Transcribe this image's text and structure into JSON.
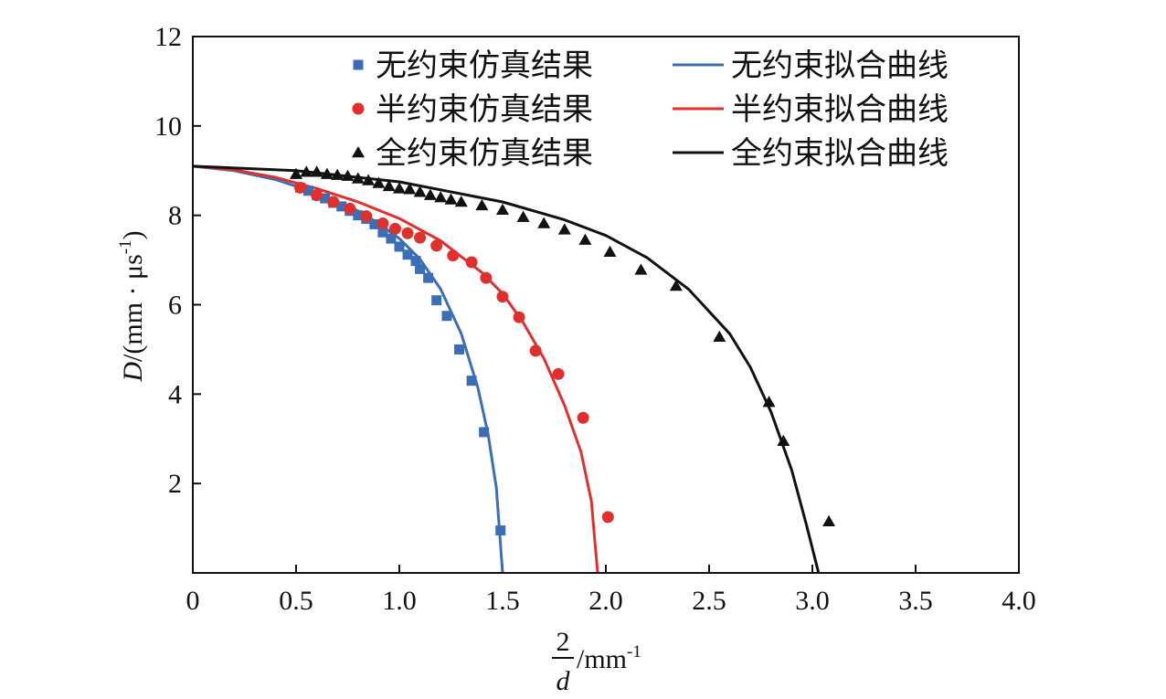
{
  "chart_data": {
    "type": "scatter",
    "xlabel": {
      "numerator": "2",
      "denominator": "d",
      "unit": "/mm",
      "unit_sup": "-1"
    },
    "ylabel": {
      "var": "D",
      "unit": "/(mm · μs",
      "unit_sup": "-1",
      "close": ")"
    },
    "xlim": [
      0,
      4.0
    ],
    "ylim": [
      0,
      12
    ],
    "x_ticks": [
      0,
      0.5,
      1.0,
      1.5,
      2.0,
      2.5,
      3.0,
      3.5,
      4.0
    ],
    "x_tick_labels": [
      "0",
      "0.5",
      "1.0",
      "1.5",
      "2.0",
      "2.5",
      "3.0",
      "3.5",
      "4.0"
    ],
    "y_ticks": [
      2,
      4,
      6,
      8,
      10,
      12
    ],
    "y_tick_labels": [
      "2",
      "4",
      "6",
      "8",
      "10",
      "12"
    ],
    "grid": false,
    "legend_position": "top-right",
    "colors": {
      "blue": "#3a6fb8",
      "red": "#e0302e",
      "black": "#111111"
    },
    "series": [
      {
        "name": "无约束仿真结果",
        "kind": "points",
        "marker": "square",
        "color": "#3a6fb8",
        "points": [
          [
            0.52,
            8.62
          ],
          [
            0.56,
            8.55
          ],
          [
            0.6,
            8.45
          ],
          [
            0.64,
            8.38
          ],
          [
            0.68,
            8.28
          ],
          [
            0.72,
            8.2
          ],
          [
            0.76,
            8.1
          ],
          [
            0.8,
            8.0
          ],
          [
            0.84,
            7.92
          ],
          [
            0.88,
            7.8
          ],
          [
            0.92,
            7.62
          ],
          [
            0.96,
            7.48
          ],
          [
            1.0,
            7.3
          ],
          [
            1.04,
            7.12
          ],
          [
            1.08,
            6.98
          ],
          [
            1.1,
            6.8
          ],
          [
            1.14,
            6.6
          ],
          [
            1.18,
            6.1
          ],
          [
            1.23,
            5.75
          ],
          [
            1.29,
            5.0
          ],
          [
            1.35,
            4.3
          ],
          [
            1.41,
            3.15
          ],
          [
            1.49,
            0.95
          ]
        ]
      },
      {
        "name": "半约束仿真结果",
        "kind": "points",
        "marker": "circle",
        "color": "#e0302e",
        "points": [
          [
            0.52,
            8.62
          ],
          [
            0.6,
            8.45
          ],
          [
            0.68,
            8.3
          ],
          [
            0.76,
            8.15
          ],
          [
            0.84,
            7.98
          ],
          [
            0.92,
            7.82
          ],
          [
            0.98,
            7.7
          ],
          [
            1.04,
            7.6
          ],
          [
            1.1,
            7.5
          ],
          [
            1.18,
            7.32
          ],
          [
            1.26,
            7.1
          ],
          [
            1.35,
            6.95
          ],
          [
            1.42,
            6.6
          ],
          [
            1.5,
            6.18
          ],
          [
            1.58,
            5.72
          ],
          [
            1.66,
            4.97
          ],
          [
            1.77,
            4.45
          ],
          [
            1.89,
            3.47
          ],
          [
            2.01,
            1.25
          ]
        ]
      },
      {
        "name": "全约束仿真结果",
        "kind": "points",
        "marker": "triangle",
        "color": "#111111",
        "points": [
          [
            0.5,
            8.92
          ],
          [
            0.55,
            8.97
          ],
          [
            0.6,
            8.97
          ],
          [
            0.65,
            8.92
          ],
          [
            0.7,
            8.9
          ],
          [
            0.75,
            8.88
          ],
          [
            0.8,
            8.82
          ],
          [
            0.85,
            8.78
          ],
          [
            0.9,
            8.72
          ],
          [
            0.95,
            8.65
          ],
          [
            1.0,
            8.6
          ],
          [
            1.05,
            8.58
          ],
          [
            1.1,
            8.52
          ],
          [
            1.15,
            8.45
          ],
          [
            1.2,
            8.4
          ],
          [
            1.25,
            8.35
          ],
          [
            1.3,
            8.3
          ],
          [
            1.4,
            8.22
          ],
          [
            1.5,
            8.12
          ],
          [
            1.6,
            7.96
          ],
          [
            1.7,
            7.82
          ],
          [
            1.8,
            7.68
          ],
          [
            1.9,
            7.45
          ],
          [
            2.02,
            7.18
          ],
          [
            2.17,
            6.78
          ],
          [
            2.34,
            6.42
          ],
          [
            2.55,
            5.28
          ],
          [
            2.79,
            3.82
          ],
          [
            2.86,
            2.95
          ],
          [
            3.08,
            1.15
          ]
        ]
      },
      {
        "name": "无约束拟合曲线",
        "kind": "line",
        "color": "#3a6fb8",
        "points": [
          [
            0.0,
            9.1
          ],
          [
            0.2,
            9.0
          ],
          [
            0.4,
            8.8
          ],
          [
            0.6,
            8.5
          ],
          [
            0.8,
            8.1
          ],
          [
            0.9,
            7.82
          ],
          [
            1.0,
            7.48
          ],
          [
            1.1,
            7.02
          ],
          [
            1.2,
            6.35
          ],
          [
            1.3,
            5.35
          ],
          [
            1.38,
            4.15
          ],
          [
            1.43,
            3.1
          ],
          [
            1.47,
            1.9
          ],
          [
            1.5,
            0.0
          ]
        ]
      },
      {
        "name": "半约束拟合曲线",
        "kind": "line",
        "color": "#e0302e",
        "points": [
          [
            0.0,
            9.1
          ],
          [
            0.2,
            9.02
          ],
          [
            0.4,
            8.85
          ],
          [
            0.6,
            8.6
          ],
          [
            0.8,
            8.3
          ],
          [
            1.0,
            7.93
          ],
          [
            1.2,
            7.43
          ],
          [
            1.4,
            6.72
          ],
          [
            1.5,
            6.25
          ],
          [
            1.6,
            5.6
          ],
          [
            1.7,
            4.8
          ],
          [
            1.8,
            3.75
          ],
          [
            1.88,
            2.7
          ],
          [
            1.93,
            1.6
          ],
          [
            1.96,
            0.0
          ]
        ]
      },
      {
        "name": "全约束拟合曲线",
        "kind": "line",
        "color": "#111111",
        "points": [
          [
            0.0,
            9.1
          ],
          [
            0.5,
            9.0
          ],
          [
            1.0,
            8.75
          ],
          [
            1.5,
            8.3
          ],
          [
            1.8,
            7.9
          ],
          [
            2.0,
            7.55
          ],
          [
            2.2,
            7.05
          ],
          [
            2.4,
            6.35
          ],
          [
            2.6,
            5.35
          ],
          [
            2.7,
            4.6
          ],
          [
            2.8,
            3.6
          ],
          [
            2.9,
            2.3
          ],
          [
            2.97,
            1.1
          ],
          [
            3.03,
            0.0
          ]
        ]
      }
    ]
  }
}
